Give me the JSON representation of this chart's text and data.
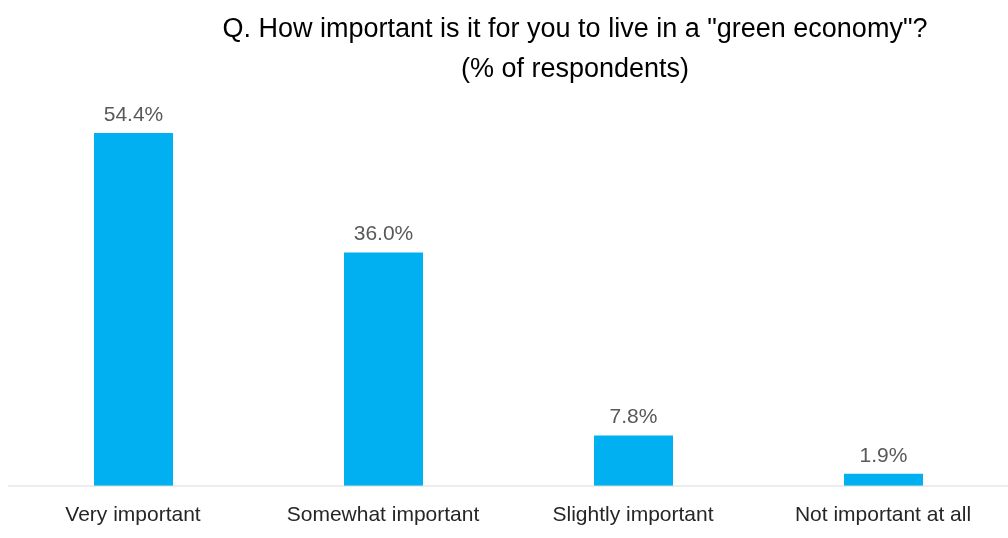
{
  "chart_data": {
    "type": "bar",
    "title": "Q. How important is it for you to live in a \"green economy\"?",
    "subtitle": "(% of respondents)",
    "categories": [
      "Very important",
      "Somewhat important",
      "Slightly important",
      "Not important at all"
    ],
    "values": [
      54.4,
      36.0,
      7.8,
      1.9
    ],
    "color": "#00b0f0",
    "value_labels": [
      "54.4%",
      "36.0%",
      "7.8%",
      "1.9%"
    ]
  }
}
